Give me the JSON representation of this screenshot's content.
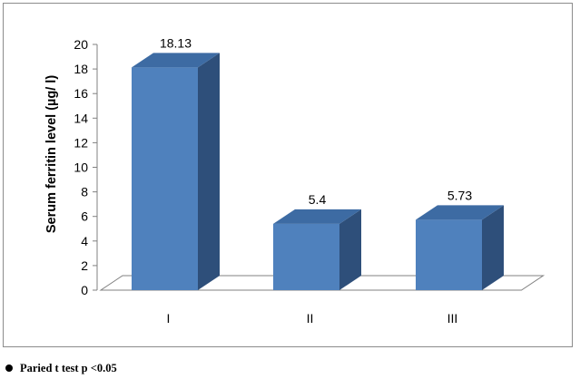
{
  "chart_data": {
    "type": "bar",
    "categories": [
      "I",
      "II",
      "III"
    ],
    "values": [
      18.13,
      5.4,
      5.73
    ],
    "data_labels": [
      "18.13",
      "5.4",
      "5.73"
    ],
    "ylabel": "Serum ferritin level (µg/ l)",
    "ylim": [
      0,
      20
    ],
    "yticks": [
      0,
      2,
      4,
      6,
      8,
      10,
      12,
      14,
      16,
      18,
      20
    ],
    "grid": false,
    "legend": "none",
    "style": "3d-column",
    "colors": {
      "bar_front": "#4F81BD",
      "bar_top": "#3D6BA3",
      "bar_side": "#2E4F7A",
      "floor": "#808080",
      "text": "#000000"
    }
  },
  "footnote": {
    "text": "Paried  t test  p <0.05"
  }
}
